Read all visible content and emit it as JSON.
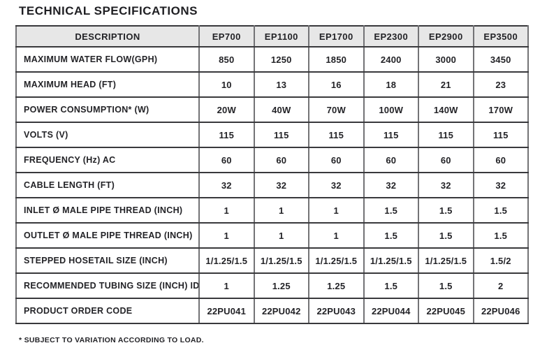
{
  "title": "TECHNICAL SPECIFICATIONS",
  "footnote": "* SUBJECT TO VARIATION ACCORDING TO LOAD.",
  "colors": {
    "header_bg": "#e7e7e7",
    "border_horizontal": "#39393c",
    "border_vertical": "#737376",
    "text": "#232327",
    "background": "#ffffff"
  },
  "table": {
    "columns": [
      "DESCRIPTION",
      "EP700",
      "EP1100",
      "EP1700",
      "EP2300",
      "EP2900",
      "EP3500"
    ],
    "rows": [
      {
        "label": "MAXIMUM WATER FLOW(GPH)",
        "values": [
          "850",
          "1250",
          "1850",
          "2400",
          "3000",
          "3450"
        ]
      },
      {
        "label": "MAXIMUM HEAD (FT)",
        "values": [
          "10",
          "13",
          "16",
          "18",
          "21",
          "23"
        ]
      },
      {
        "label": "POWER CONSUMPTION* (W)",
        "values": [
          "20W",
          "40W",
          "70W",
          "100W",
          "140W",
          "170W"
        ]
      },
      {
        "label": "VOLTS (V)",
        "values": [
          "115",
          "115",
          "115",
          "115",
          "115",
          "115"
        ]
      },
      {
        "label": "FREQUENCY (Hz) AC",
        "values": [
          "60",
          "60",
          "60",
          "60",
          "60",
          "60"
        ]
      },
      {
        "label": "CABLE LENGTH (FT)",
        "values": [
          "32",
          "32",
          "32",
          "32",
          "32",
          "32"
        ]
      },
      {
        "label": "INLET Ø MALE PIPE THREAD (INCH)",
        "values": [
          "1",
          "1",
          "1",
          "1.5",
          "1.5",
          "1.5"
        ]
      },
      {
        "label": "OUTLET Ø MALE PIPE THREAD (INCH)",
        "values": [
          "1",
          "1",
          "1",
          "1.5",
          "1.5",
          "1.5"
        ]
      },
      {
        "label": "STEPPED HOSETAIL SIZE (INCH)",
        "values": [
          "1/1.25/1.5",
          "1/1.25/1.5",
          "1/1.25/1.5",
          "1/1.25/1.5",
          "1/1.25/1.5",
          "1.5/2"
        ]
      },
      {
        "label": "RECOMMENDED TUBING SIZE (INCH) ID",
        "values": [
          "1",
          "1.25",
          "1.25",
          "1.5",
          "1.5",
          "2"
        ]
      },
      {
        "label": "PRODUCT ORDER CODE",
        "values": [
          "22PU041",
          "22PU042",
          "22PU043",
          "22PU044",
          "22PU045",
          "22PU046"
        ]
      }
    ]
  }
}
